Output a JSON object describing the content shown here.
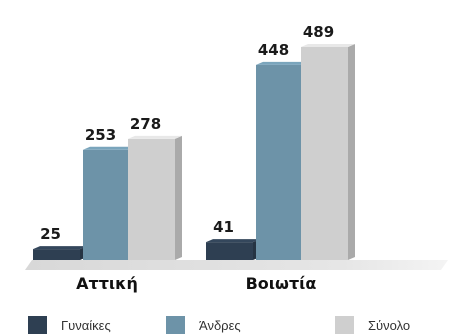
{
  "chart_data": {
    "type": "bar",
    "categories": [
      "Αττική",
      "Βοιωτία"
    ],
    "series": [
      {
        "name": "Γυναίκες",
        "values": [
          25,
          41
        ],
        "color": "#2e3f52"
      },
      {
        "name": "Άνδρες",
        "values": [
          253,
          448
        ],
        "color": "#6d93a8"
      },
      {
        "name": "Σύνολο",
        "values": [
          278,
          489
        ],
        "color": "#cfcfcf"
      }
    ],
    "ylim": [
      0,
      489
    ],
    "grid": false,
    "legend_position": "bottom"
  }
}
